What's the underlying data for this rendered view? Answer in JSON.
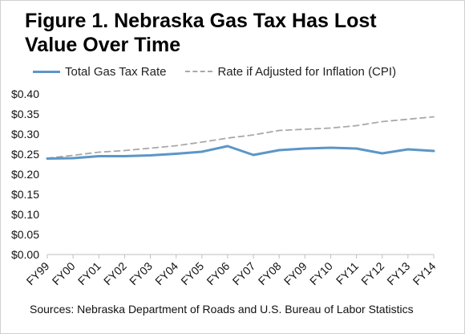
{
  "chart_data": {
    "type": "line",
    "title_lines": [
      "Figure 1. Nebraska Gas Tax Has Lost",
      "Value Over Time"
    ],
    "categories": [
      "FY99",
      "FY00",
      "FY01",
      "FY02",
      "FY03",
      "FY04",
      "FY05",
      "FY06",
      "FY07",
      "FY08",
      "FY09",
      "FY10",
      "FY11",
      "FY12",
      "FY13",
      "FY14"
    ],
    "series": [
      {
        "name": "Total Gas Tax Rate",
        "color": "#5b96c8",
        "style": "solid",
        "values": [
          0.239,
          0.24,
          0.245,
          0.245,
          0.247,
          0.251,
          0.256,
          0.27,
          0.248,
          0.26,
          0.264,
          0.266,
          0.264,
          0.252,
          0.262,
          0.258
        ]
      },
      {
        "name": "Rate if Adjusted for Inflation (CPI)",
        "color": "#a9a9a9",
        "style": "dashed",
        "values": [
          0.24,
          0.247,
          0.255,
          0.259,
          0.265,
          0.271,
          0.28,
          0.29,
          0.298,
          0.309,
          0.312,
          0.315,
          0.321,
          0.331,
          0.337,
          0.343
        ]
      }
    ],
    "y_ticks": [
      "$0.00",
      "$0.05",
      "$0.10",
      "$0.15",
      "$0.20",
      "$0.25",
      "$0.30",
      "$0.35",
      "$0.40"
    ],
    "ylim": [
      0,
      0.4
    ],
    "grid": false,
    "legend_position": "top",
    "source": "Sources: Nebraska Department of Roads and U.S. Bureau of Labor Statistics"
  }
}
